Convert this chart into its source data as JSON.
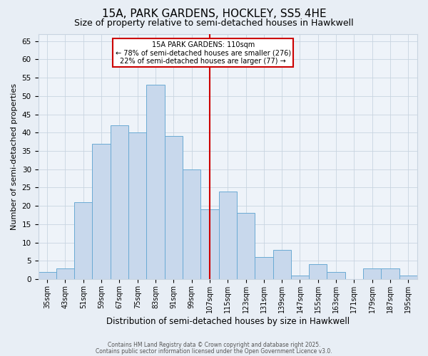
{
  "title": "15A, PARK GARDENS, HOCKLEY, SS5 4HE",
  "subtitle": "Size of property relative to semi-detached houses in Hawkwell",
  "xlabel": "Distribution of semi-detached houses by size in Hawkwell",
  "ylabel": "Number of semi-detached properties",
  "bin_labels": [
    "35sqm",
    "43sqm",
    "51sqm",
    "59sqm",
    "67sqm",
    "75sqm",
    "83sqm",
    "91sqm",
    "99sqm",
    "107sqm",
    "115sqm",
    "123sqm",
    "131sqm",
    "139sqm",
    "147sqm",
    "155sqm",
    "163sqm",
    "171sqm",
    "179sqm",
    "187sqm",
    "195sqm"
  ],
  "bin_starts": [
    31,
    39,
    47,
    55,
    63,
    71,
    79,
    87,
    95,
    103,
    111,
    119,
    127,
    135,
    143,
    151,
    159,
    167,
    175,
    183,
    191
  ],
  "bin_width": 8,
  "counts": [
    2,
    3,
    21,
    37,
    42,
    40,
    53,
    39,
    30,
    19,
    24,
    18,
    6,
    8,
    1,
    4,
    2,
    0,
    3,
    3,
    1
  ],
  "bar_color": "#c8d8ec",
  "bar_edge_color": "#6aaad4",
  "vline_x": 107,
  "vline_color": "#cc0000",
  "ylim": [
    0,
    67
  ],
  "yticks": [
    0,
    5,
    10,
    15,
    20,
    25,
    30,
    35,
    40,
    45,
    50,
    55,
    60,
    65
  ],
  "annotation_title": "15A PARK GARDENS: 110sqm",
  "annotation_line1": "← 78% of semi-detached houses are smaller (276)",
  "annotation_line2": "22% of semi-detached houses are larger (77) →",
  "bg_color": "#e8eef5",
  "plot_bg_color": "#eef3f9",
  "footer1": "Contains HM Land Registry data © Crown copyright and database right 2025.",
  "footer2": "Contains public sector information licensed under the Open Government Licence v3.0.",
  "grid_color": "#c8d4e0",
  "title_fontsize": 11,
  "subtitle_fontsize": 9,
  "ylabel_fontsize": 8,
  "xlabel_fontsize": 8.5,
  "tick_fontsize": 7,
  "ytick_fontsize": 7.5,
  "footer_fontsize": 5.5
}
